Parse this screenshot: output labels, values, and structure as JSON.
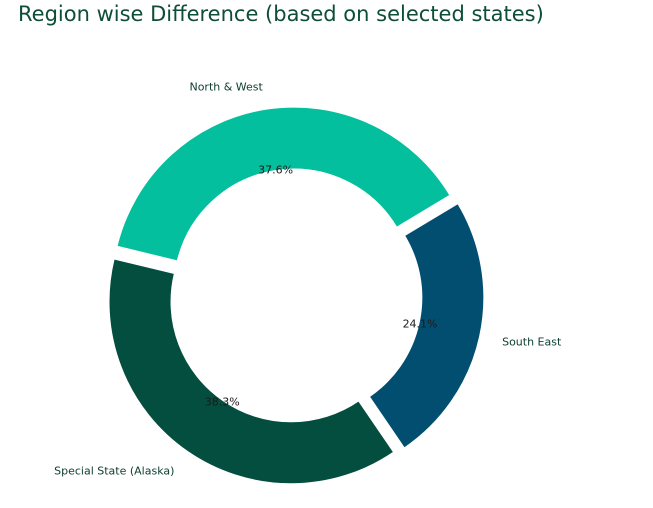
{
  "chart_data": {
    "type": "pie",
    "variant": "donut",
    "title": "Region wise Difference (based on selected states)",
    "slices": [
      {
        "label": "North & West",
        "percent": 37.6,
        "percent_label": "37.6%",
        "color": "#04bf9d"
      },
      {
        "label": "South East",
        "percent": 24.1,
        "percent_label": "24.1%",
        "color": "#024e70"
      },
      {
        "label": "Special State (Alaska)",
        "percent": 38.3,
        "percent_label": "38.3%",
        "color": "#044e40"
      }
    ],
    "legend": "none",
    "exploded": true
  }
}
